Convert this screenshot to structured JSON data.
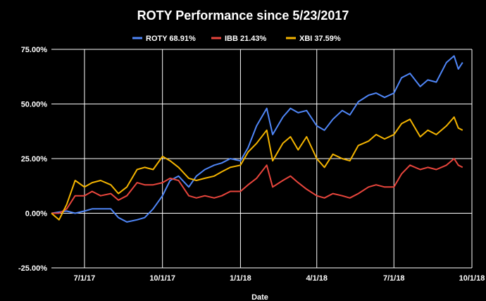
{
  "chart_data": {
    "type": "line",
    "title": "ROTY Performance since 5/23/2017",
    "xlabel": "Date",
    "ylabel": "",
    "legend_position": "top",
    "grid": true,
    "x_range": [
      "2017-05-23",
      "2018-10-01"
    ],
    "ylim": [
      -25,
      75
    ],
    "y_ticks": [
      {
        "value": 75,
        "label": "75.00%"
      },
      {
        "value": 50,
        "label": "50.00%"
      },
      {
        "value": 25,
        "label": "25.00%"
      },
      {
        "value": 0,
        "label": "0.00%"
      },
      {
        "value": -25,
        "label": "-25.00%"
      }
    ],
    "x_ticks": [
      {
        "date": "2017-07-01",
        "label": "7/1/17"
      },
      {
        "date": "2017-10-01",
        "label": "10/1/17"
      },
      {
        "date": "2018-01-01",
        "label": "1/1/18"
      },
      {
        "date": "2018-04-01",
        "label": "4/1/18"
      },
      {
        "date": "2018-07-01",
        "label": "7/1/18"
      },
      {
        "date": "2018-10-01",
        "label": "10/1/18"
      }
    ],
    "series": [
      {
        "name": "ROTY 68.91%",
        "color": "#4f86f7",
        "points": [
          [
            "2017-05-23",
            0
          ],
          [
            "2017-06-01",
            0.5
          ],
          [
            "2017-06-10",
            1
          ],
          [
            "2017-06-20",
            0
          ],
          [
            "2017-07-01",
            1
          ],
          [
            "2017-07-10",
            2
          ],
          [
            "2017-07-20",
            2
          ],
          [
            "2017-08-01",
            2
          ],
          [
            "2017-08-10",
            -2
          ],
          [
            "2017-08-20",
            -4
          ],
          [
            "2017-09-01",
            -3
          ],
          [
            "2017-09-10",
            -2
          ],
          [
            "2017-09-20",
            2
          ],
          [
            "2017-10-01",
            8
          ],
          [
            "2017-10-10",
            15
          ],
          [
            "2017-10-20",
            17
          ],
          [
            "2017-11-01",
            12
          ],
          [
            "2017-11-10",
            17
          ],
          [
            "2017-11-20",
            20
          ],
          [
            "2017-12-01",
            22
          ],
          [
            "2017-12-10",
            23
          ],
          [
            "2017-12-20",
            25
          ],
          [
            "2018-01-01",
            24
          ],
          [
            "2018-01-10",
            30
          ],
          [
            "2018-01-20",
            40
          ],
          [
            "2018-02-01",
            48
          ],
          [
            "2018-02-08",
            36
          ],
          [
            "2018-02-20",
            44
          ],
          [
            "2018-03-01",
            48
          ],
          [
            "2018-03-10",
            46
          ],
          [
            "2018-03-20",
            47
          ],
          [
            "2018-04-01",
            40
          ],
          [
            "2018-04-10",
            38
          ],
          [
            "2018-04-20",
            43
          ],
          [
            "2018-05-01",
            47
          ],
          [
            "2018-05-10",
            45
          ],
          [
            "2018-05-20",
            51
          ],
          [
            "2018-06-01",
            54
          ],
          [
            "2018-06-10",
            55
          ],
          [
            "2018-06-20",
            53
          ],
          [
            "2018-07-01",
            55
          ],
          [
            "2018-07-10",
            62
          ],
          [
            "2018-07-20",
            64
          ],
          [
            "2018-08-01",
            58
          ],
          [
            "2018-08-10",
            61
          ],
          [
            "2018-08-20",
            60
          ],
          [
            "2018-09-01",
            69
          ],
          [
            "2018-09-10",
            72
          ],
          [
            "2018-09-15",
            66
          ],
          [
            "2018-09-20",
            69
          ]
        ]
      },
      {
        "name": "IBB 21.43%",
        "color": "#e8453c",
        "points": [
          [
            "2017-05-23",
            0
          ],
          [
            "2017-06-01",
            0
          ],
          [
            "2017-06-10",
            2
          ],
          [
            "2017-06-20",
            8
          ],
          [
            "2017-07-01",
            8
          ],
          [
            "2017-07-10",
            10
          ],
          [
            "2017-07-20",
            8
          ],
          [
            "2017-08-01",
            9
          ],
          [
            "2017-08-10",
            6
          ],
          [
            "2017-08-20",
            8
          ],
          [
            "2017-09-01",
            14
          ],
          [
            "2017-09-10",
            13
          ],
          [
            "2017-09-20",
            13
          ],
          [
            "2017-10-01",
            14
          ],
          [
            "2017-10-10",
            16
          ],
          [
            "2017-10-20",
            15
          ],
          [
            "2017-11-01",
            8
          ],
          [
            "2017-11-10",
            7
          ],
          [
            "2017-11-20",
            8
          ],
          [
            "2017-12-01",
            7
          ],
          [
            "2017-12-10",
            8
          ],
          [
            "2017-12-20",
            10
          ],
          [
            "2018-01-01",
            10
          ],
          [
            "2018-01-10",
            13
          ],
          [
            "2018-01-20",
            16
          ],
          [
            "2018-02-01",
            22
          ],
          [
            "2018-02-08",
            12
          ],
          [
            "2018-02-20",
            15
          ],
          [
            "2018-03-01",
            17
          ],
          [
            "2018-03-10",
            14
          ],
          [
            "2018-03-20",
            11
          ],
          [
            "2018-04-01",
            8
          ],
          [
            "2018-04-10",
            7
          ],
          [
            "2018-04-20",
            9
          ],
          [
            "2018-05-01",
            8
          ],
          [
            "2018-05-10",
            7
          ],
          [
            "2018-05-20",
            9
          ],
          [
            "2018-06-01",
            12
          ],
          [
            "2018-06-10",
            13
          ],
          [
            "2018-06-20",
            12
          ],
          [
            "2018-07-01",
            12
          ],
          [
            "2018-07-10",
            18
          ],
          [
            "2018-07-20",
            22
          ],
          [
            "2018-08-01",
            20
          ],
          [
            "2018-08-10",
            21
          ],
          [
            "2018-08-20",
            20
          ],
          [
            "2018-09-01",
            22
          ],
          [
            "2018-09-10",
            25
          ],
          [
            "2018-09-15",
            22
          ],
          [
            "2018-09-20",
            21
          ]
        ]
      },
      {
        "name": "XBI 37.59%",
        "color": "#f4b400",
        "points": [
          [
            "2017-05-23",
            0
          ],
          [
            "2017-06-01",
            -3
          ],
          [
            "2017-06-10",
            4
          ],
          [
            "2017-06-20",
            15
          ],
          [
            "2017-07-01",
            12
          ],
          [
            "2017-07-10",
            14
          ],
          [
            "2017-07-20",
            15
          ],
          [
            "2017-08-01",
            13
          ],
          [
            "2017-08-10",
            9
          ],
          [
            "2017-08-20",
            12
          ],
          [
            "2017-09-01",
            20
          ],
          [
            "2017-09-10",
            21
          ],
          [
            "2017-09-20",
            20
          ],
          [
            "2017-10-01",
            26
          ],
          [
            "2017-10-10",
            24
          ],
          [
            "2017-10-20",
            21
          ],
          [
            "2017-11-01",
            16
          ],
          [
            "2017-11-10",
            15
          ],
          [
            "2017-11-20",
            16
          ],
          [
            "2017-12-01",
            17
          ],
          [
            "2017-12-10",
            19
          ],
          [
            "2017-12-20",
            21
          ],
          [
            "2018-01-01",
            22
          ],
          [
            "2018-01-10",
            28
          ],
          [
            "2018-01-20",
            32
          ],
          [
            "2018-02-01",
            38
          ],
          [
            "2018-02-08",
            24
          ],
          [
            "2018-02-20",
            32
          ],
          [
            "2018-03-01",
            35
          ],
          [
            "2018-03-10",
            29
          ],
          [
            "2018-03-20",
            35
          ],
          [
            "2018-04-01",
            25
          ],
          [
            "2018-04-10",
            21
          ],
          [
            "2018-04-20",
            27
          ],
          [
            "2018-05-01",
            25
          ],
          [
            "2018-05-10",
            24
          ],
          [
            "2018-05-20",
            31
          ],
          [
            "2018-06-01",
            33
          ],
          [
            "2018-06-10",
            36
          ],
          [
            "2018-06-20",
            34
          ],
          [
            "2018-07-01",
            36
          ],
          [
            "2018-07-10",
            41
          ],
          [
            "2018-07-20",
            43
          ],
          [
            "2018-08-01",
            35
          ],
          [
            "2018-08-10",
            38
          ],
          [
            "2018-08-20",
            36
          ],
          [
            "2018-09-01",
            40
          ],
          [
            "2018-09-10",
            44
          ],
          [
            "2018-09-15",
            39
          ],
          [
            "2018-09-20",
            38
          ]
        ]
      }
    ]
  }
}
